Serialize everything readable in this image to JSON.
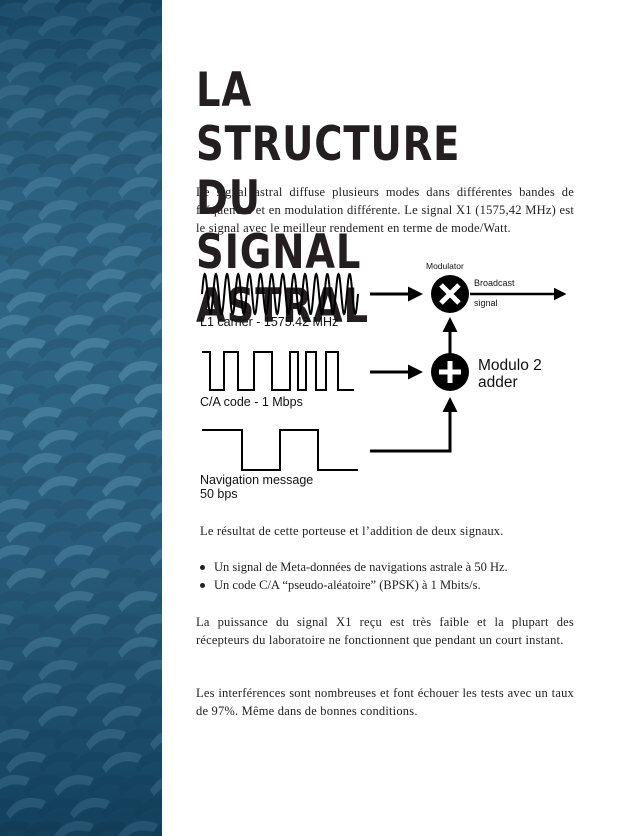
{
  "page": {
    "title_line1": "LA STRUCTURE DU",
    "title_line2": "SIGNAL ASTRAL",
    "intro": "Le signal astral diffuse plusieurs modes dans différentes bandes de fréquences et en modulation différente. Le signal X1 (1575,42 MHz) est le signal avec le meilleur rendement en terme de mode/Watt.",
    "result_sentence": "Le résultat de cette porteuse et l’addition de deux signaux.",
    "bullets": [
      "Un signal de Meta-données de navigations astrale à 50 Hz.",
      "Un code C/A “pseudo-aléatoire” (BPSK) à 1 Mbits/s."
    ],
    "para_power": "La puissance du signal X1 reçu est très faible et la plupart des récepteurs du laboratoire ne fonctionnent que pendant un court instant.",
    "para_interference": "Les interférences sont nombreuses et font échouer les tests avec un taux de 97%. Même dans de bonnes conditions."
  },
  "diagram": {
    "modulator_label": "Modulator",
    "broadcast_label": "Broadcast",
    "signal_label": "signal",
    "carrier_label": "L1 carrier - 1575.42 MHz",
    "ca_label": "C/A code - 1 Mbps",
    "adder_label_1": "Modulo 2",
    "adder_label_2": "adder",
    "nav_label_1": "Navigation message",
    "nav_label_2": "50 bps"
  },
  "colors": {
    "panel": "#1f5676",
    "text": "#231f20"
  }
}
